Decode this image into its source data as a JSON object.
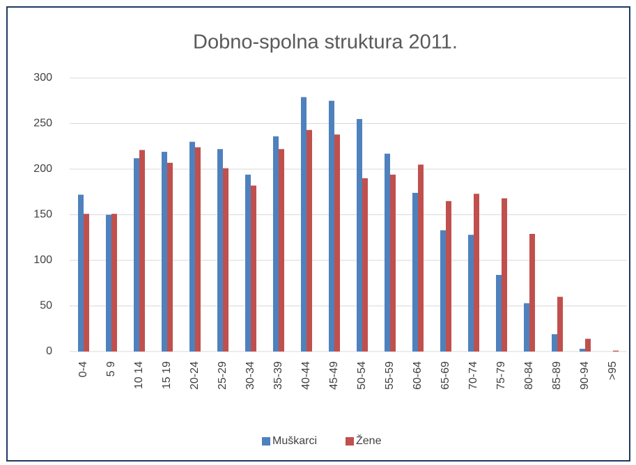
{
  "chart_data": {
    "type": "bar",
    "title": "Dobno-spolna struktura 2011.",
    "categories": [
      "0-4",
      "5 9",
      "10 14",
      "15 19",
      "20-24",
      "25-29",
      "30-34",
      "35-39",
      "40-44",
      "45-49",
      "50-54",
      "55-59",
      "60-64",
      "65-69",
      "70-74",
      "75-79",
      "80-84",
      "85-89",
      "90-94",
      ">95"
    ],
    "series": [
      {
        "name": "Muškarci",
        "color": "#4f81bd",
        "values": [
          172,
          150,
          212,
          219,
          230,
          222,
          194,
          236,
          279,
          275,
          255,
          217,
          174,
          133,
          128,
          84,
          53,
          19,
          3,
          0
        ]
      },
      {
        "name": "Žene",
        "color": "#c0504d",
        "values": [
          151,
          151,
          221,
          207,
          224,
          201,
          182,
          222,
          243,
          238,
          190,
          194,
          205,
          165,
          173,
          168,
          129,
          60,
          14,
          1
        ]
      }
    ],
    "ylim": [
      0,
      300
    ],
    "yticks": [
      0,
      50,
      100,
      150,
      200,
      250,
      300
    ],
    "grid": true,
    "legend": "bottom"
  }
}
